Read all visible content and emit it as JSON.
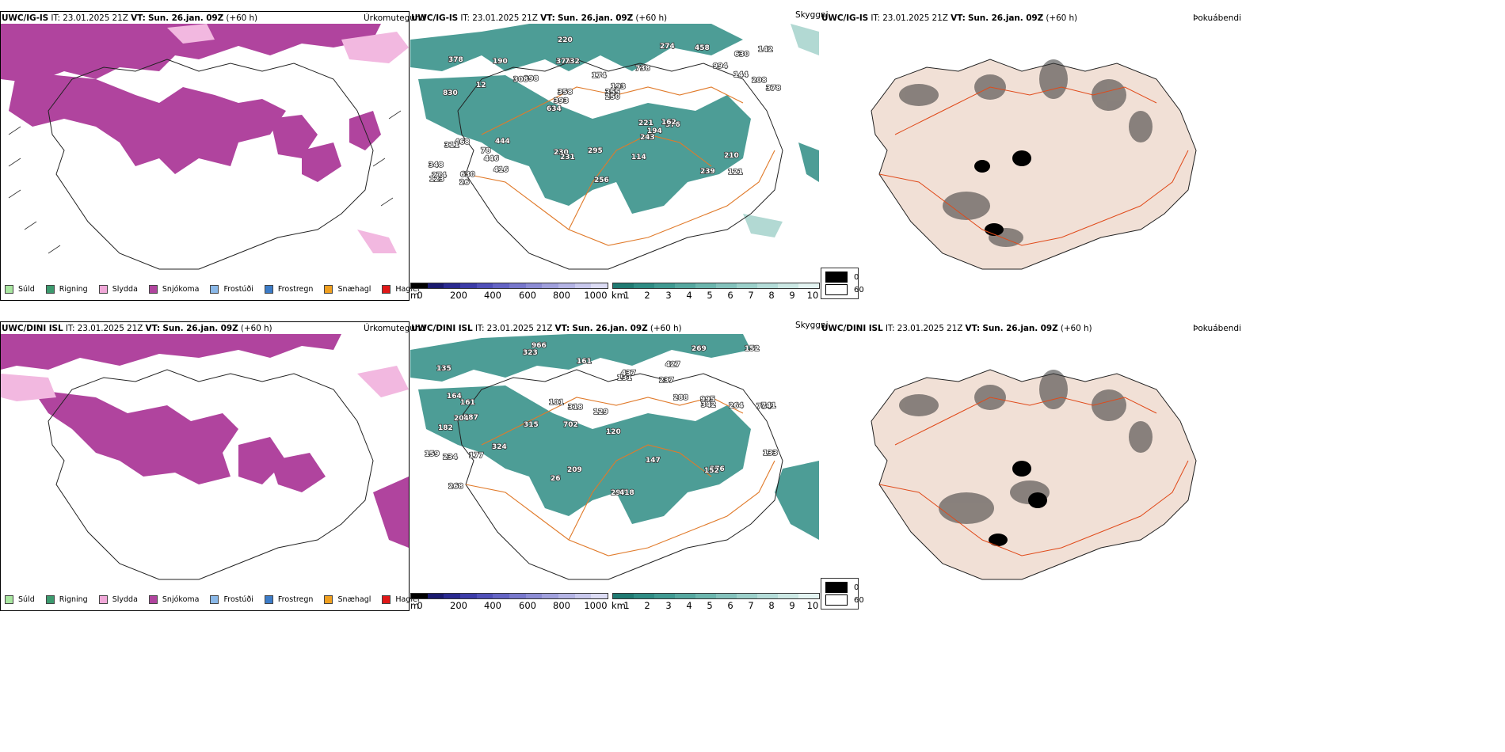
{
  "colors": {
    "snow": "#b0449e",
    "light_pink": "#f2b8e0",
    "teal": "#2e8c84",
    "teal_light": "#9fd0c8",
    "road": "#e07a2a",
    "coast": "#222222",
    "terrain_bg": "#f1e0d6",
    "dark": "#111111"
  },
  "rows": [
    {
      "precip": {
        "model": "UWC/IG-IS",
        "it": "IT: 23.01.2025 21Z",
        "vt_label": "VT:",
        "vt": "Sun. 26.jan. 09Z",
        "lead": "(+60 h)",
        "right": "Úrkomutegund"
      },
      "cloud": {
        "model": "UWC/IG-IS",
        "it": "IT: 23.01.2025 21Z",
        "vt_label": "VT:",
        "vt": "Sun. 26.jan. 09Z",
        "lead": "(+60 h)",
        "right": "Skyggni"
      },
      "fog": {
        "model": "UWC/IG-IS",
        "it": "IT: 23.01.2025 21Z",
        "vt_label": "VT:",
        "vt": "Sun. 26.jan. 09Z",
        "lead": "(+60 h)",
        "right": "Þokuábendi"
      },
      "labels": [
        "121",
        "830",
        "630",
        "634",
        "738",
        "630",
        "378",
        "174",
        "468",
        "998",
        "348",
        "446",
        "732",
        "193",
        "376",
        "378",
        "220",
        "378",
        "221",
        "144",
        "393",
        "230",
        "358",
        "190",
        "274",
        "444",
        "239",
        "210",
        "162",
        "256",
        "308",
        "12",
        "243",
        "416",
        "208",
        "355",
        "274",
        "231",
        "250",
        "311",
        "994",
        "142",
        "194",
        "114",
        "78",
        "26",
        "123",
        "295",
        "458"
      ]
    },
    {
      "precip": {
        "model": "UWC/DINI ISL",
        "it": "IT: 23.01.2025 21Z",
        "vt_label": "VT:",
        "vt": "Sun. 26.jan. 09Z",
        "lead": "(+60 h)",
        "right": "Úrkomutegund"
      },
      "cloud": {
        "model": "UWC/DINI ISL",
        "it": "IT: 23.01.2025 21Z",
        "vt_label": "VT:",
        "vt": "Sun. 26.jan. 09Z",
        "lead": "(+60 h)",
        "right": "Skyggni"
      },
      "fog": {
        "model": "UWC/DINI ISL",
        "it": "IT: 23.01.2025 21Z",
        "vt_label": "VT:",
        "vt": "Sun. 26.jan. 09Z",
        "lead": "(+60 h)",
        "right": "Þokuábendi"
      },
      "labels": [
        "966",
        "427",
        "784",
        "702",
        "120",
        "587",
        "135",
        "237",
        "182",
        "131",
        "129",
        "268",
        "323",
        "315",
        "297",
        "418",
        "209",
        "269",
        "288",
        "324",
        "161",
        "204",
        "741",
        "264",
        "159",
        "164",
        "318",
        "342",
        "276",
        "234",
        "152",
        "437",
        "177",
        "101",
        "147",
        "133",
        "995",
        "26",
        "152",
        "161"
      ]
    }
  ],
  "precip_legend": [
    {
      "label": "Súld",
      "color": "#a8e6a0"
    },
    {
      "label": "Rigning",
      "color": "#3c9a6e"
    },
    {
      "label": "Slydda",
      "color": "#f0a8d8"
    },
    {
      "label": "Snjókoma",
      "color": "#b0449e"
    },
    {
      "label": "Frostúði",
      "color": "#8ab8e8"
    },
    {
      "label": "Frostregn",
      "color": "#3c7cc8"
    },
    {
      "label": "Snæhagl",
      "color": "#f0a020"
    },
    {
      "label": "Haglél",
      "color": "#e01818"
    }
  ],
  "ceiling_bar": {
    "unit": "m",
    "ticks": [
      "0",
      "200",
      "400",
      "600",
      "800",
      "1000"
    ],
    "colors": [
      "#000000",
      "#1a1a6e",
      "#2a2a90",
      "#3c3ca8",
      "#5050b8",
      "#6464c4",
      "#7878cc",
      "#8c8cd4",
      "#a0a0dc",
      "#b4b4e4",
      "#c8c8ec",
      "#dcdcf4"
    ]
  },
  "vis_bar": {
    "unit": "km",
    "ticks": [
      "1",
      "2",
      "3",
      "4",
      "5",
      "6",
      "7",
      "8",
      "9",
      "10"
    ],
    "colors": [
      "#1f7a72",
      "#2e8c84",
      "#409a92",
      "#56a8a0",
      "#6cb6ae",
      "#84c2bc",
      "#9cd0ca",
      "#b4dcd8",
      "#cce8e4",
      "#e4f4f2"
    ]
  },
  "fog_legend": [
    {
      "label": "0",
      "color": "#000000"
    },
    {
      "label": "60",
      "color": "#ffffff"
    }
  ]
}
